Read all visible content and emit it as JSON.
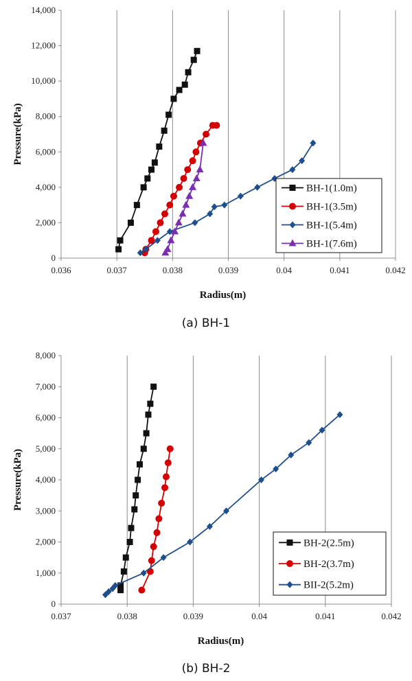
{
  "colors": {
    "black": "#111111",
    "red": "#d40000",
    "blue": "#1f4e8c",
    "purple": "#7a2fb0"
  },
  "captions": [
    "(a)  BH-1",
    "(b)  BH-2"
  ],
  "chart_data": [
    {
      "type": "line",
      "xlabel": "Radius(m)",
      "ylabel": "Pressure(kPa)",
      "xlim": [
        0.036,
        0.042
      ],
      "ylim": [
        0,
        14000
      ],
      "xticks": [
        0.036,
        0.037,
        0.038,
        0.039,
        0.04,
        0.041,
        0.042
      ],
      "xtick_labels": [
        "0.036",
        "0.037",
        "0.038",
        "0.039",
        "0.04",
        "0.041",
        "0.042"
      ],
      "yticks": [
        0,
        2000,
        4000,
        6000,
        8000,
        10000,
        12000,
        14000
      ],
      "ytick_labels": [
        "0",
        "2,000",
        "4,000",
        "6,000",
        "8,000",
        "10,000",
        "12,000",
        "14,000"
      ],
      "grid": "vertical",
      "legend_position": "bottom-right",
      "series": [
        {
          "name": "BH-1(1.0m)",
          "marker": "square",
          "color": "#111111",
          "x": [
            0.03703,
            0.03706,
            0.03725,
            0.03736,
            0.03748,
            0.03755,
            0.03762,
            0.03768,
            0.03776,
            0.03785,
            0.03793,
            0.03802,
            0.03812,
            0.03822,
            0.03828,
            0.03838,
            0.03844
          ],
          "y": [
            500,
            1000,
            2000,
            3000,
            4000,
            4500,
            5000,
            5400,
            6300,
            7200,
            8100,
            9000,
            9500,
            9800,
            10500,
            11200,
            11700
          ]
        },
        {
          "name": "BH-1(3.5m)",
          "marker": "circle",
          "color": "#d40000",
          "x": [
            0.0375,
            0.03752,
            0.03762,
            0.0377,
            0.03778,
            0.03786,
            0.03795,
            0.03802,
            0.03812,
            0.0382,
            0.03827,
            0.03836,
            0.03842,
            0.0385,
            0.0386,
            0.03872,
            0.03879
          ],
          "y": [
            300,
            500,
            1000,
            1500,
            2000,
            2500,
            3000,
            3500,
            4000,
            4500,
            5000,
            5500,
            6000,
            6500,
            7000,
            7500,
            7500
          ]
        },
        {
          "name": "BH-1(5.4m)",
          "marker": "diamond",
          "color": "#1f4e8c",
          "x": [
            0.03742,
            0.03752,
            0.03773,
            0.03795,
            0.0384,
            0.03867,
            0.03875,
            0.03893,
            0.03922,
            0.03952,
            0.03983,
            0.04015,
            0.04032,
            0.04052
          ],
          "y": [
            300,
            500,
            1000,
            1500,
            2000,
            2500,
            2900,
            3000,
            3500,
            4000,
            4500,
            5000,
            5500,
            6500
          ]
        },
        {
          "name": "BH-1(7.6m)",
          "marker": "triangle",
          "color": "#7a2fb0",
          "x": [
            0.03787,
            0.03791,
            0.03797,
            0.03804,
            0.03811,
            0.03818,
            0.03824,
            0.0383,
            0.03836,
            0.03843,
            0.03849,
            0.03855
          ],
          "y": [
            300,
            500,
            1000,
            1500,
            2000,
            2500,
            3000,
            3500,
            4000,
            4500,
            5000,
            6500
          ]
        }
      ]
    },
    {
      "type": "line",
      "xlabel": "Radius(m)",
      "ylabel": "Pressure(kPa)",
      "xlim": [
        0.037,
        0.042
      ],
      "ylim": [
        0,
        8000
      ],
      "xticks": [
        0.037,
        0.038,
        0.039,
        0.04,
        0.041,
        0.042
      ],
      "xtick_labels": [
        "0.037",
        "0.038",
        "0.039",
        "0.04",
        "0.041",
        "0.042"
      ],
      "yticks": [
        0,
        1000,
        2000,
        3000,
        4000,
        5000,
        6000,
        7000,
        8000
      ],
      "ytick_labels": [
        "0",
        "1,000",
        "2,000",
        "3,000",
        "4,000",
        "5,000",
        "6,000",
        "7,000",
        "8,000"
      ],
      "grid": "vertical",
      "legend_position": "bottom-right",
      "series": [
        {
          "name": "BH-2(2.5m)",
          "marker": "square",
          "color": "#111111",
          "x": [
            0.0379,
            0.0379,
            0.03795,
            0.03798,
            0.03804,
            0.03806,
            0.03811,
            0.03813,
            0.03816,
            0.03819,
            0.03825,
            0.03829,
            0.03832,
            0.03835,
            0.0384
          ],
          "y": [
            450,
            600,
            1050,
            1500,
            2000,
            2450,
            3050,
            3500,
            4000,
            4500,
            5000,
            5500,
            6100,
            6450,
            7000
          ]
        },
        {
          "name": "BH-2(3.7m)",
          "marker": "circle",
          "color": "#d40000",
          "x": [
            0.03822,
            0.03835,
            0.03837,
            0.0384,
            0.03845,
            0.03848,
            0.03852,
            0.03857,
            0.03859,
            0.03862,
            0.03865
          ],
          "y": [
            450,
            1050,
            1400,
            1850,
            2300,
            2750,
            3250,
            3750,
            4100,
            4550,
            5000
          ]
        },
        {
          "name": "BII-2(5.2m)",
          "marker": "diamond",
          "color": "#1f4e8c",
          "x": [
            0.03767,
            0.03772,
            0.03778,
            0.03782,
            0.03825,
            0.03855,
            0.03895,
            0.03925,
            0.0395,
            0.04003,
            0.04025,
            0.04048,
            0.04075,
            0.04095,
            0.04122
          ],
          "y": [
            300,
            400,
            500,
            600,
            1000,
            1500,
            2000,
            2500,
            3000,
            4000,
            4350,
            4800,
            5200,
            5600,
            6100
          ]
        }
      ]
    }
  ]
}
